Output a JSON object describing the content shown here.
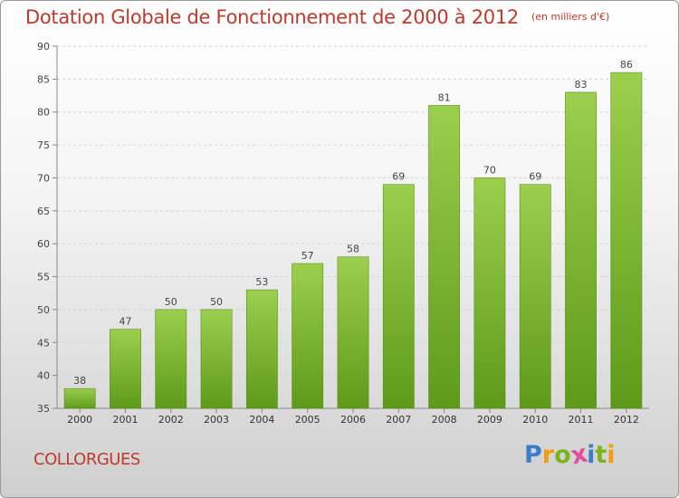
{
  "title": "Dotation Globale de Fonctionnement de 2000 à 2012",
  "unit_note": "(en milliers d'€)",
  "commune": "COLLORGUES",
  "logo": {
    "letters": [
      "P",
      "r",
      "o",
      "x",
      "i",
      "t",
      "i"
    ],
    "colors": [
      "#3a7dc9",
      "#f39c12",
      "#7ab51d",
      "#e04b9a",
      "#3a7dc9",
      "#7ab51d",
      "#f39c12"
    ]
  },
  "colors": {
    "bar_top": "#9ccf4e",
    "bar_bottom": "#5e9a1a",
    "title": "#c0392b"
  },
  "chart_data": {
    "type": "bar",
    "categories": [
      "2000",
      "2001",
      "2002",
      "2003",
      "2004",
      "2005",
      "2006",
      "2007",
      "2008",
      "2009",
      "2010",
      "2011",
      "2012"
    ],
    "values": [
      38,
      47,
      50,
      50,
      53,
      57,
      58,
      69,
      81,
      70,
      69,
      83,
      86
    ],
    "ylim": [
      35,
      90
    ],
    "yticks": [
      35,
      40,
      45,
      50,
      55,
      60,
      65,
      70,
      75,
      80,
      85,
      90
    ],
    "grid": true,
    "legend": "none"
  }
}
